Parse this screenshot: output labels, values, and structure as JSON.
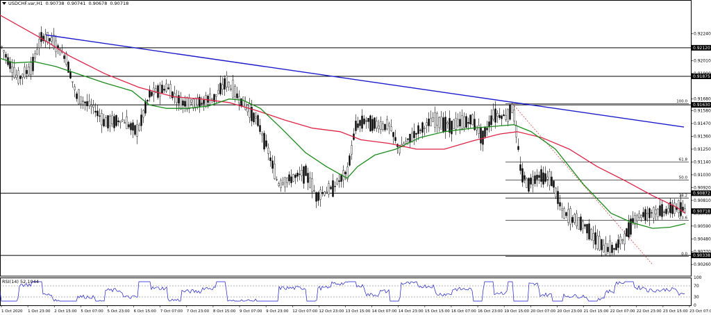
{
  "header": {
    "symbol": "USDCHF.var,H1",
    "open": "0.90738",
    "high": "0.90741",
    "low": "0.90678",
    "close": "0.90718"
  },
  "rsi_panel": {
    "label": "RSI(14) 52.1044",
    "value": 52.1044,
    "levels": [
      70,
      30
    ],
    "scale_labels": [
      "100",
      "70",
      "30",
      "0"
    ]
  },
  "colors": {
    "candles": "#000000",
    "ma_fast": "#1a8a1a",
    "ma_slow": "#dd2244",
    "trendline": "#1a1acc",
    "fib_dashed": "#dd4444",
    "rsi": "#1a1acc",
    "hline": "#000000"
  },
  "chart_data": {
    "type": "candlestick",
    "symbol": "USDCHF.var",
    "timeframe": "H1",
    "ylim": [
      0.9016,
      0.9253
    ],
    "y_ticks": [
      "0.92240",
      "0.92010",
      "0.91900",
      "0.91680",
      "0.91580",
      "0.91470",
      "0.91360",
      "0.91250",
      "0.91140",
      "0.91030",
      "0.90920",
      "0.90810",
      "0.90700",
      "0.90590",
      "0.90480",
      "0.90370",
      "0.90260"
    ],
    "x_labels": [
      "1 Oct 2020",
      "1 Oct 23:00",
      "2 Oct 15:00",
      "5 Oct 07:00",
      "5 Oct 23:00",
      "6 Oct 15:00",
      "7 Oct 07:00",
      "7 Oct 23:00",
      "8 Oct 15:00",
      "9 Oct 07:00",
      "9 Oct 23:00",
      "12 Oct 07:00",
      "12 Oct 23:00",
      "13 Oct 15:00",
      "14 Oct 07:00",
      "14 Oct 23:00",
      "15 Oct 15:00",
      "16 Oct 07:00",
      "16 Oct 23:00",
      "19 Oct 15:00",
      "20 Oct 07:00",
      "20 Oct 23:00",
      "21 Oct 15:00",
      "22 Oct 07:00",
      "22 Oct 23:00",
      "23 Oct 15:00",
      "23 Oct 07:00"
    ],
    "horizontal_levels": [
      {
        "value": 0.9212,
        "label": "0.92120"
      },
      {
        "value": 0.91875,
        "label": "0.91875"
      },
      {
        "value": 0.9163,
        "label": "0.91630"
      },
      {
        "value": 0.90872,
        "label": "0.90872"
      },
      {
        "value": 0.90338,
        "label": "0.90338"
      }
    ],
    "current_price": {
      "value": 0.90718,
      "label": "0.90718"
    },
    "fibonacci": {
      "high": 0.9164,
      "low": 0.9033,
      "levels": [
        {
          "ratio": "100.0",
          "value": 0.9164
        },
        {
          "ratio": "61.8",
          "value": 0.9114
        },
        {
          "ratio": "50.0",
          "value": 0.90985
        },
        {
          "ratio": "38.2",
          "value": 0.9083
        },
        {
          "ratio": "23.6",
          "value": 0.90639
        },
        {
          "ratio": "0.0",
          "value": 0.9033
        }
      ]
    },
    "trendline": {
      "start": {
        "bar": 66,
        "price": 0.9223
      },
      "end": {
        "bar": 985,
        "price": 0.9144
      }
    },
    "segments": [
      [
        0,
        0.9215
      ],
      [
        25,
        0.9185
      ],
      [
        45,
        0.9195
      ],
      [
        60,
        0.9222
      ],
      [
        75,
        0.9218
      ],
      [
        95,
        0.9203
      ],
      [
        110,
        0.917
      ],
      [
        135,
        0.916
      ],
      [
        150,
        0.9148
      ],
      [
        175,
        0.915
      ],
      [
        198,
        0.914
      ],
      [
        215,
        0.9172
      ],
      [
        240,
        0.9178
      ],
      [
        260,
        0.9165
      ],
      [
        290,
        0.9165
      ],
      [
        310,
        0.917
      ],
      [
        325,
        0.9183
      ],
      [
        345,
        0.9168
      ],
      [
        370,
        0.915
      ],
      [
        385,
        0.9125
      ],
      [
        400,
        0.9095
      ],
      [
        420,
        0.91
      ],
      [
        440,
        0.9105
      ],
      [
        455,
        0.9085
      ],
      [
        475,
        0.909
      ],
      [
        500,
        0.9105
      ],
      [
        512,
        0.9145
      ],
      [
        525,
        0.915
      ],
      [
        545,
        0.9145
      ],
      [
        560,
        0.9145
      ],
      [
        575,
        0.9125
      ],
      [
        600,
        0.914
      ],
      [
        625,
        0.915
      ],
      [
        650,
        0.9145
      ],
      [
        680,
        0.915
      ],
      [
        695,
        0.9135
      ],
      [
        710,
        0.9155
      ],
      [
        730,
        0.9153
      ],
      [
        738,
        0.9162
      ],
      [
        745,
        0.913
      ],
      [
        750,
        0.9105
      ],
      [
        760,
        0.9095
      ],
      [
        775,
        0.9103
      ],
      [
        795,
        0.9098
      ],
      [
        810,
        0.907
      ],
      [
        825,
        0.9065
      ],
      [
        845,
        0.9058
      ],
      [
        860,
        0.9045
      ],
      [
        870,
        0.904
      ],
      [
        885,
        0.904
      ],
      [
        900,
        0.905
      ],
      [
        912,
        0.9065
      ],
      [
        930,
        0.907
      ],
      [
        955,
        0.9072
      ],
      [
        975,
        0.9075
      ],
      [
        987,
        0.9072
      ]
    ],
    "ma_fast": [
      [
        0,
        0.9203
      ],
      [
        20,
        0.9199
      ],
      [
        50,
        0.92
      ],
      [
        80,
        0.9196
      ],
      [
        110,
        0.919
      ],
      [
        150,
        0.9182
      ],
      [
        190,
        0.9175
      ],
      [
        215,
        0.9163
      ],
      [
        240,
        0.916
      ],
      [
        270,
        0.916
      ],
      [
        300,
        0.9162
      ],
      [
        330,
        0.9168
      ],
      [
        350,
        0.9167
      ],
      [
        375,
        0.916
      ],
      [
        405,
        0.9143
      ],
      [
        440,
        0.9122
      ],
      [
        470,
        0.911
      ],
      [
        500,
        0.91
      ],
      [
        515,
        0.911
      ],
      [
        540,
        0.912
      ],
      [
        570,
        0.9125
      ],
      [
        605,
        0.9135
      ],
      [
        640,
        0.914
      ],
      [
        680,
        0.9143
      ],
      [
        720,
        0.9145
      ],
      [
        740,
        0.9146
      ],
      [
        765,
        0.914
      ],
      [
        800,
        0.9125
      ],
      [
        840,
        0.9095
      ],
      [
        880,
        0.907
      ],
      [
        910,
        0.9062
      ],
      [
        940,
        0.9057
      ],
      [
        965,
        0.9058
      ],
      [
        987,
        0.9061
      ]
    ],
    "ma_slow": [
      [
        0,
        0.924
      ],
      [
        60,
        0.922
      ],
      [
        100,
        0.9205
      ],
      [
        150,
        0.919
      ],
      [
        200,
        0.9178
      ],
      [
        250,
        0.917
      ],
      [
        290,
        0.9168
      ],
      [
        330,
        0.9165
      ],
      [
        370,
        0.9158
      ],
      [
        410,
        0.915
      ],
      [
        450,
        0.9143
      ],
      [
        490,
        0.914
      ],
      [
        520,
        0.9133
      ],
      [
        560,
        0.913
      ],
      [
        600,
        0.9125
      ],
      [
        640,
        0.9125
      ],
      [
        680,
        0.9132
      ],
      [
        720,
        0.9138
      ],
      [
        745,
        0.914
      ],
      [
        780,
        0.9135
      ],
      [
        820,
        0.9125
      ],
      [
        860,
        0.911
      ],
      [
        900,
        0.9098
      ],
      [
        940,
        0.9085
      ],
      [
        975,
        0.9075
      ],
      [
        987,
        0.907
      ]
    ]
  }
}
